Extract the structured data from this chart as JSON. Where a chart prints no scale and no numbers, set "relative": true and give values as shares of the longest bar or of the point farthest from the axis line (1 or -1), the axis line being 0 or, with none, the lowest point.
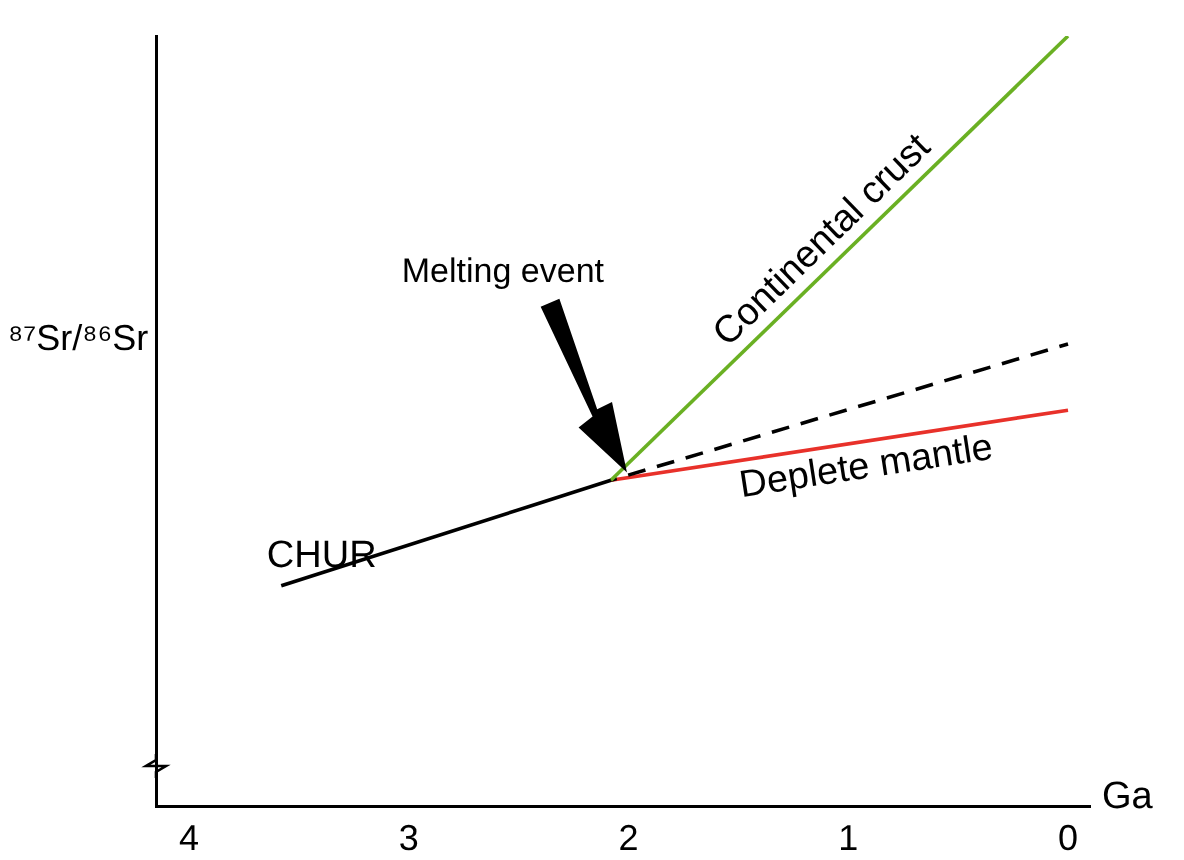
{
  "chart_data": {
    "type": "line",
    "relative": true,
    "xlabel": "Ga",
    "ylabel": "⁸⁷Sr/⁸⁶Sr",
    "xlim": [
      4.15,
      -0.1
    ],
    "xticks": [
      4,
      3,
      2,
      1,
      0
    ],
    "series": [
      {
        "name": "CHUR",
        "color": "#000000",
        "x": [
          3.58,
          2.08
        ],
        "values": [
          0.286,
          0.423
        ]
      },
      {
        "name": "Continental crust",
        "color": "#6ab023",
        "x": [
          2.08,
          0
        ],
        "values": [
          0.423,
          1
        ]
      },
      {
        "color": "#000000",
        "x": [
          2.08,
          0
        ],
        "values": [
          0.423,
          0.6
        ],
        "line_style": "dashed"
      },
      {
        "name": "Deplete mantle",
        "color": "#e8312a",
        "x": [
          2.08,
          0
        ],
        "values": [
          0.423,
          0.514
        ]
      }
    ],
    "annotations": [
      "Melting event"
    ],
    "legend": false,
    "grid": false,
    "marker": "none"
  }
}
